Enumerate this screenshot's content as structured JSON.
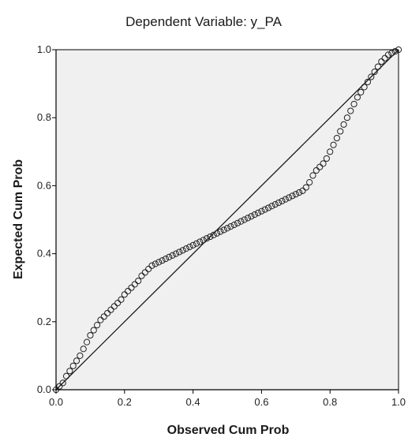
{
  "chart_data": {
    "type": "scatter",
    "title": "Dependent Variable: y_PA",
    "xlabel": "Observed Cum Prob",
    "ylabel": "Expected Cum Prob",
    "xlim": [
      0.0,
      1.0
    ],
    "ylim": [
      0.0,
      1.0
    ],
    "x_ticks": [
      "0.0",
      "0.2",
      "0.4",
      "0.6",
      "0.8",
      "1.0"
    ],
    "y_ticks": [
      "0.0",
      "0.2",
      "0.4",
      "0.6",
      "0.8",
      "1.0"
    ],
    "reference_line": {
      "from": [
        0.0,
        0.0
      ],
      "to": [
        1.0,
        1.0
      ]
    },
    "series": [
      {
        "x": [
          0.0,
          0.01,
          0.02,
          0.03,
          0.04,
          0.05,
          0.06,
          0.07,
          0.08,
          0.09,
          0.1,
          0.11,
          0.12,
          0.13,
          0.14,
          0.15,
          0.16,
          0.17,
          0.18,
          0.19,
          0.2,
          0.21,
          0.22,
          0.23,
          0.24,
          0.25,
          0.26,
          0.27,
          0.28,
          0.29,
          0.3,
          0.31,
          0.32,
          0.33,
          0.34,
          0.35,
          0.36,
          0.37,
          0.38,
          0.39,
          0.4,
          0.41,
          0.42,
          0.43,
          0.44,
          0.45,
          0.46,
          0.47,
          0.48,
          0.49,
          0.5,
          0.51,
          0.52,
          0.53,
          0.54,
          0.55,
          0.56,
          0.57,
          0.58,
          0.59,
          0.6,
          0.61,
          0.62,
          0.63,
          0.64,
          0.65,
          0.66,
          0.67,
          0.68,
          0.69,
          0.7,
          0.71,
          0.72,
          0.73,
          0.74,
          0.75,
          0.76,
          0.77,
          0.78,
          0.79,
          0.8,
          0.81,
          0.82,
          0.83,
          0.84,
          0.85,
          0.86,
          0.87,
          0.88,
          0.89,
          0.9,
          0.91,
          0.92,
          0.93,
          0.94,
          0.95,
          0.96,
          0.97,
          0.98,
          0.99,
          1.0
        ],
        "y": [
          0.0,
          0.01,
          0.02,
          0.04,
          0.055,
          0.07,
          0.085,
          0.1,
          0.12,
          0.14,
          0.16,
          0.175,
          0.19,
          0.205,
          0.215,
          0.225,
          0.235,
          0.245,
          0.255,
          0.265,
          0.28,
          0.29,
          0.3,
          0.31,
          0.32,
          0.335,
          0.345,
          0.355,
          0.365,
          0.37,
          0.375,
          0.38,
          0.385,
          0.39,
          0.395,
          0.4,
          0.405,
          0.41,
          0.415,
          0.42,
          0.425,
          0.43,
          0.435,
          0.44,
          0.445,
          0.45,
          0.455,
          0.46,
          0.465,
          0.47,
          0.475,
          0.48,
          0.485,
          0.49,
          0.495,
          0.5,
          0.505,
          0.51,
          0.515,
          0.52,
          0.525,
          0.53,
          0.535,
          0.54,
          0.545,
          0.55,
          0.555,
          0.56,
          0.565,
          0.57,
          0.575,
          0.58,
          0.585,
          0.595,
          0.61,
          0.63,
          0.645,
          0.655,
          0.665,
          0.68,
          0.7,
          0.72,
          0.74,
          0.76,
          0.78,
          0.8,
          0.82,
          0.84,
          0.86,
          0.875,
          0.89,
          0.905,
          0.92,
          0.935,
          0.95,
          0.965,
          0.975,
          0.985,
          0.99,
          0.995,
          1.0
        ]
      }
    ],
    "grid": false,
    "legend": "none"
  },
  "colors": {
    "background": "#ffffff",
    "plot_background": "#f0f0f0",
    "axis": "#000000",
    "marker_stroke": "#222222",
    "reference_line": "#1a1a1a",
    "text": "#1a1a1a"
  }
}
